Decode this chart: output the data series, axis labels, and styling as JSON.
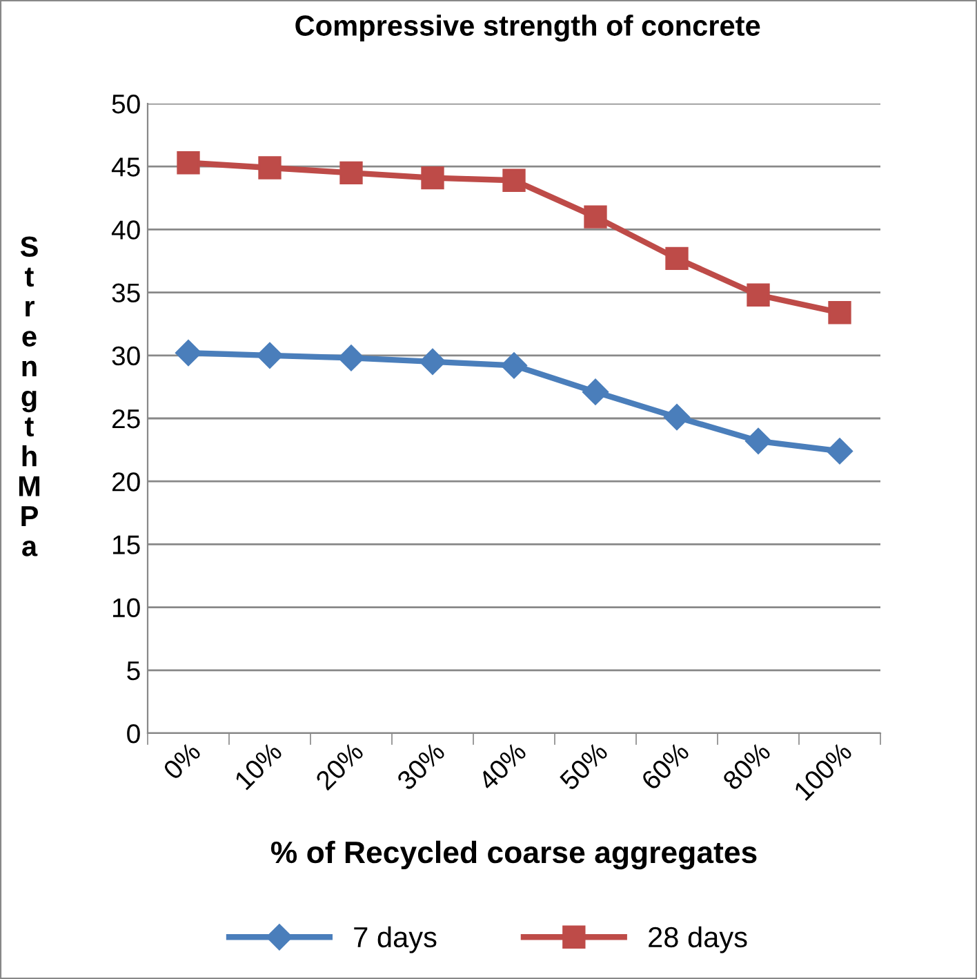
{
  "chart_data": {
    "type": "line",
    "title": "Compressive strength of concrete",
    "xlabel": "% of Recycled coarse aggregates",
    "ylabel": "Strength MPa",
    "categories": [
      "0%",
      "10%",
      "20%",
      "30%",
      "40%",
      "50%",
      "60%",
      "80%",
      "100%"
    ],
    "series": [
      {
        "name": "7 days",
        "color": "#4a7ebb",
        "marker": "diamond",
        "values": [
          30.2,
          30.0,
          29.8,
          29.5,
          29.2,
          27.1,
          25.1,
          23.2,
          22.4
        ]
      },
      {
        "name": "28 days",
        "color": "#be4b48",
        "marker": "square",
        "values": [
          45.3,
          44.9,
          44.5,
          44.1,
          43.9,
          41.0,
          37.7,
          34.8,
          33.4
        ]
      }
    ],
    "ylim": [
      0,
      50
    ],
    "yticks": [
      0,
      5,
      10,
      15,
      20,
      25,
      30,
      35,
      40,
      45,
      50
    ],
    "grid": "y",
    "legend": "bottom",
    "line_style": "solid"
  }
}
